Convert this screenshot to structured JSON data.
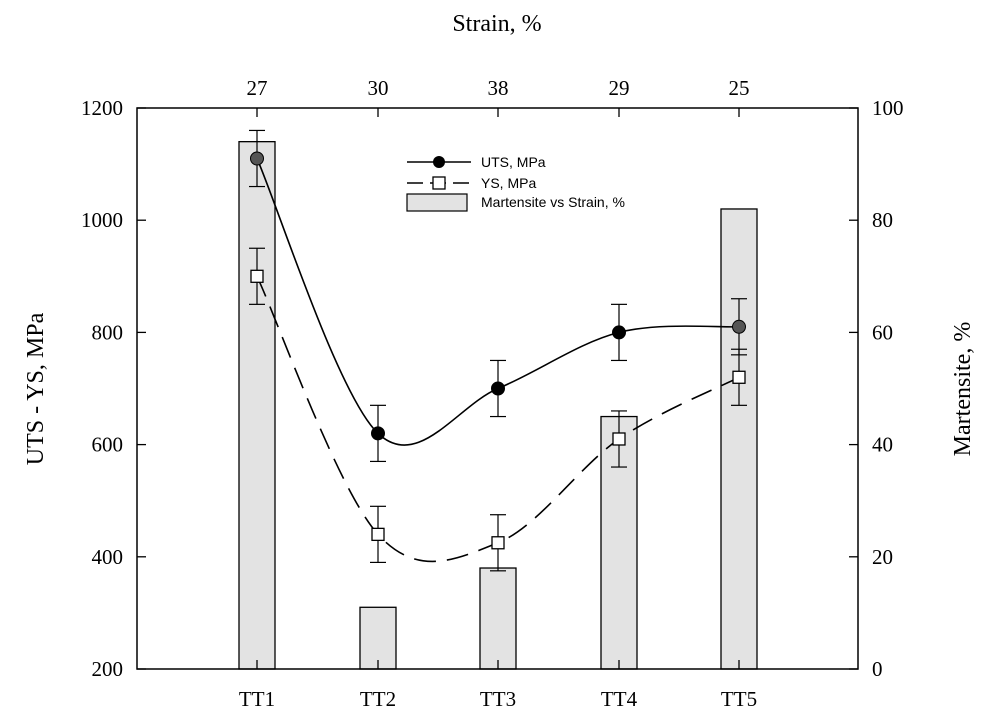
{
  "chart_data": {
    "type": "bar+line",
    "categories": [
      "TT1",
      "TT2",
      "TT3",
      "TT4",
      "TT5"
    ],
    "top_axis": {
      "title": "Strain, %",
      "ticks": [
        "27",
        "30",
        "38",
        "29",
        "25"
      ]
    },
    "left_axis": {
      "title": "UTS - YS, MPa",
      "range": [
        200,
        1200
      ],
      "ticks": [
        200,
        400,
        600,
        800,
        1000,
        1200
      ]
    },
    "right_axis": {
      "title": "Martensite, %",
      "range": [
        0,
        100
      ],
      "ticks": [
        0,
        20,
        40,
        60,
        80,
        100
      ]
    },
    "series": [
      {
        "name": "UTS, MPa",
        "kind": "line",
        "marker": "filled-circle",
        "line_style": "solid",
        "axis": "left",
        "values": [
          1110,
          620,
          700,
          800,
          810
        ],
        "error": [
          50,
          50,
          50,
          50,
          50
        ]
      },
      {
        "name": "YS, MPa",
        "kind": "line",
        "marker": "open-square",
        "line_style": "dashed",
        "axis": "left",
        "values": [
          900,
          440,
          425,
          610,
          720
        ],
        "error": [
          50,
          50,
          50,
          50,
          50
        ]
      },
      {
        "name": "Martensite vs Strain, %",
        "kind": "bar",
        "axis": "right",
        "values": [
          94,
          11,
          18,
          45,
          82
        ]
      }
    ],
    "legend_placement": "top-center",
    "grid": false,
    "colors": {
      "bar_fill": "#e3e3e3",
      "line": "#000000"
    }
  }
}
